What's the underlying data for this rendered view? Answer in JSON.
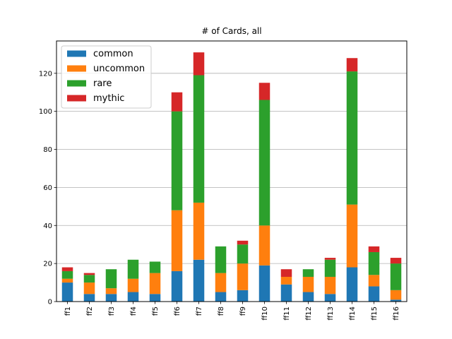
{
  "chart_data": {
    "type": "bar",
    "stacked": true,
    "title": "# of Cards, all",
    "xlabel": "",
    "ylabel": "",
    "ylim": [
      0,
      137
    ],
    "yticks": [
      0,
      20,
      40,
      60,
      80,
      100,
      120
    ],
    "grid": "y",
    "legend_position": "top-left",
    "categories": [
      "ff1",
      "ff2",
      "ff3",
      "ff4",
      "ff5",
      "ff6",
      "ff7",
      "ff8",
      "ff9",
      "ff10",
      "ff11",
      "ff12",
      "ff13",
      "ff14",
      "ff15",
      "ff16"
    ],
    "series": [
      {
        "name": "common",
        "color": "#1f77b4",
        "values": [
          10,
          4,
          4,
          5,
          4,
          16,
          22,
          5,
          6,
          19,
          9,
          5,
          4,
          18,
          8,
          1
        ]
      },
      {
        "name": "uncommon",
        "color": "#ff7f0e",
        "values": [
          2,
          6,
          3,
          7,
          11,
          32,
          30,
          10,
          14,
          21,
          4,
          8,
          9,
          33,
          6,
          5
        ]
      },
      {
        "name": "rare",
        "color": "#2ca02c",
        "values": [
          4,
          4,
          10,
          10,
          6,
          52,
          67,
          14,
          10,
          66,
          0,
          4,
          9,
          70,
          12,
          14
        ]
      },
      {
        "name": "mythic",
        "color": "#d62728",
        "values": [
          2,
          1,
          0,
          0,
          0,
          10,
          12,
          0,
          2,
          9,
          4,
          0,
          1,
          7,
          3,
          3
        ]
      }
    ]
  }
}
